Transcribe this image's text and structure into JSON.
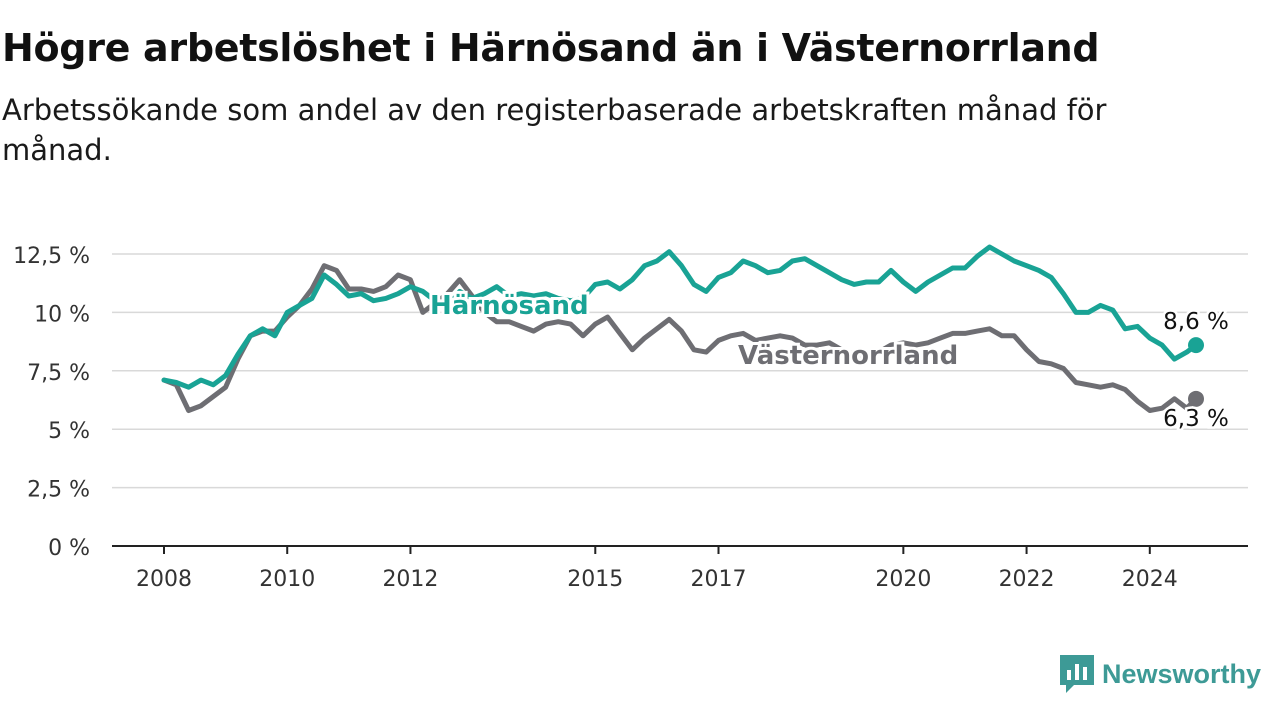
{
  "title": "Högre arbetslöshet i Härnösand än i Västernorrland",
  "subtitle": "Arbetssökande som andel av den registerbaserade arbetskraften månad för månad.",
  "brand": {
    "name": "Newsworthy",
    "icon": "bar-chart-logo-icon",
    "color": "#3d9a96"
  },
  "chart_data": {
    "type": "line",
    "title": "Högre arbetslöshet i Härnösand än i Västernorrland",
    "y_ticks": [
      0,
      2.5,
      5,
      7.5,
      10,
      12.5
    ],
    "y_tick_labels": [
      "0 %",
      "2,5 %",
      "5 %",
      "7,5 %",
      "10 %",
      "12,5 %"
    ],
    "ylim": [
      0,
      12.5
    ],
    "xlim": [
      2008,
      2024.75
    ],
    "x_ticks": [
      2008,
      2010,
      2012,
      2015,
      2017,
      2020,
      2022,
      2024
    ],
    "x_tick_labels": [
      "2008",
      "2010",
      "2012",
      "2015",
      "2017",
      "2020",
      "2022",
      "2024"
    ],
    "grid": true,
    "legend": "inline labels",
    "series": [
      {
        "name": "Härnösand",
        "color": "#19a395",
        "end_label": "8,6 %",
        "points": [
          [
            2008.0,
            7.1
          ],
          [
            2008.2,
            7.0
          ],
          [
            2008.4,
            6.8
          ],
          [
            2008.6,
            7.1
          ],
          [
            2008.8,
            6.9
          ],
          [
            2009.0,
            7.3
          ],
          [
            2009.2,
            8.2
          ],
          [
            2009.4,
            9.0
          ],
          [
            2009.6,
            9.3
          ],
          [
            2009.8,
            9.0
          ],
          [
            2010.0,
            10.0
          ],
          [
            2010.2,
            10.3
          ],
          [
            2010.4,
            10.6
          ],
          [
            2010.6,
            11.6
          ],
          [
            2010.8,
            11.2
          ],
          [
            2011.0,
            10.7
          ],
          [
            2011.2,
            10.8
          ],
          [
            2011.4,
            10.5
          ],
          [
            2011.6,
            10.6
          ],
          [
            2011.8,
            10.8
          ],
          [
            2012.0,
            11.1
          ],
          [
            2012.2,
            10.9
          ],
          [
            2012.4,
            10.5
          ],
          [
            2012.6,
            10.2
          ],
          [
            2012.8,
            10.9
          ],
          [
            2013.0,
            10.6
          ],
          [
            2013.2,
            10.8
          ],
          [
            2013.4,
            11.1
          ],
          [
            2013.6,
            10.7
          ],
          [
            2013.8,
            10.8
          ],
          [
            2014.0,
            10.7
          ],
          [
            2014.2,
            10.8
          ],
          [
            2014.4,
            10.6
          ],
          [
            2014.6,
            10.5
          ],
          [
            2014.8,
            10.6
          ],
          [
            2015.0,
            11.2
          ],
          [
            2015.2,
            11.3
          ],
          [
            2015.4,
            11.0
          ],
          [
            2015.6,
            11.4
          ],
          [
            2015.8,
            12.0
          ],
          [
            2016.0,
            12.2
          ],
          [
            2016.2,
            12.6
          ],
          [
            2016.4,
            12.0
          ],
          [
            2016.6,
            11.2
          ],
          [
            2016.8,
            10.9
          ],
          [
            2017.0,
            11.5
          ],
          [
            2017.2,
            11.7
          ],
          [
            2017.4,
            12.2
          ],
          [
            2017.6,
            12.0
          ],
          [
            2017.8,
            11.7
          ],
          [
            2018.0,
            11.8
          ],
          [
            2018.2,
            12.2
          ],
          [
            2018.4,
            12.3
          ],
          [
            2018.6,
            12.0
          ],
          [
            2018.8,
            11.7
          ],
          [
            2019.0,
            11.4
          ],
          [
            2019.2,
            11.2
          ],
          [
            2019.4,
            11.3
          ],
          [
            2019.6,
            11.3
          ],
          [
            2019.8,
            11.8
          ],
          [
            2020.0,
            11.3
          ],
          [
            2020.2,
            10.9
          ],
          [
            2020.4,
            11.3
          ],
          [
            2020.6,
            11.6
          ],
          [
            2020.8,
            11.9
          ],
          [
            2021.0,
            11.9
          ],
          [
            2021.2,
            12.4
          ],
          [
            2021.4,
            12.8
          ],
          [
            2021.6,
            12.5
          ],
          [
            2021.8,
            12.2
          ],
          [
            2022.0,
            12.0
          ],
          [
            2022.2,
            11.8
          ],
          [
            2022.4,
            11.5
          ],
          [
            2022.6,
            10.8
          ],
          [
            2022.8,
            10.0
          ],
          [
            2023.0,
            10.0
          ],
          [
            2023.2,
            10.3
          ],
          [
            2023.4,
            10.1
          ],
          [
            2023.6,
            9.3
          ],
          [
            2023.8,
            9.4
          ],
          [
            2024.0,
            8.9
          ],
          [
            2024.2,
            8.6
          ],
          [
            2024.4,
            8.0
          ],
          [
            2024.6,
            8.3
          ],
          [
            2024.75,
            8.6
          ]
        ]
      },
      {
        "name": "Västernorrland",
        "color": "#6e6e73",
        "end_label": "6,3 %",
        "points": [
          [
            2008.0,
            7.1
          ],
          [
            2008.2,
            6.9
          ],
          [
            2008.4,
            5.8
          ],
          [
            2008.6,
            6.0
          ],
          [
            2008.8,
            6.4
          ],
          [
            2009.0,
            6.8
          ],
          [
            2009.2,
            8.0
          ],
          [
            2009.4,
            9.0
          ],
          [
            2009.6,
            9.2
          ],
          [
            2009.8,
            9.2
          ],
          [
            2010.0,
            9.8
          ],
          [
            2010.2,
            10.3
          ],
          [
            2010.4,
            11.0
          ],
          [
            2010.6,
            12.0
          ],
          [
            2010.8,
            11.8
          ],
          [
            2011.0,
            11.0
          ],
          [
            2011.2,
            11.0
          ],
          [
            2011.4,
            10.9
          ],
          [
            2011.6,
            11.1
          ],
          [
            2011.8,
            11.6
          ],
          [
            2012.0,
            11.4
          ],
          [
            2012.2,
            10.0
          ],
          [
            2012.4,
            10.4
          ],
          [
            2012.6,
            10.8
          ],
          [
            2012.8,
            11.4
          ],
          [
            2013.0,
            10.7
          ],
          [
            2013.2,
            10.0
          ],
          [
            2013.4,
            9.6
          ],
          [
            2013.6,
            9.6
          ],
          [
            2013.8,
            9.4
          ],
          [
            2014.0,
            9.2
          ],
          [
            2014.2,
            9.5
          ],
          [
            2014.4,
            9.6
          ],
          [
            2014.6,
            9.5
          ],
          [
            2014.8,
            9.0
          ],
          [
            2015.0,
            9.5
          ],
          [
            2015.2,
            9.8
          ],
          [
            2015.4,
            9.1
          ],
          [
            2015.6,
            8.4
          ],
          [
            2015.8,
            8.9
          ],
          [
            2016.0,
            9.3
          ],
          [
            2016.2,
            9.7
          ],
          [
            2016.4,
            9.2
          ],
          [
            2016.6,
            8.4
          ],
          [
            2016.8,
            8.3
          ],
          [
            2017.0,
            8.8
          ],
          [
            2017.2,
            9.0
          ],
          [
            2017.4,
            9.1
          ],
          [
            2017.6,
            8.8
          ],
          [
            2017.8,
            8.9
          ],
          [
            2018.0,
            9.0
          ],
          [
            2018.2,
            8.9
          ],
          [
            2018.4,
            8.6
          ],
          [
            2018.6,
            8.6
          ],
          [
            2018.8,
            8.7
          ],
          [
            2019.0,
            8.4
          ],
          [
            2019.2,
            8.2
          ],
          [
            2019.4,
            8.1
          ],
          [
            2019.6,
            8.3
          ],
          [
            2019.8,
            8.6
          ],
          [
            2020.0,
            8.7
          ],
          [
            2020.2,
            8.6
          ],
          [
            2020.4,
            8.7
          ],
          [
            2020.6,
            8.9
          ],
          [
            2020.8,
            9.1
          ],
          [
            2021.0,
            9.1
          ],
          [
            2021.2,
            9.2
          ],
          [
            2021.4,
            9.3
          ],
          [
            2021.6,
            9.0
          ],
          [
            2021.8,
            9.0
          ],
          [
            2022.0,
            8.4
          ],
          [
            2022.2,
            7.9
          ],
          [
            2022.4,
            7.8
          ],
          [
            2022.6,
            7.6
          ],
          [
            2022.8,
            7.0
          ],
          [
            2023.0,
            6.9
          ],
          [
            2023.2,
            6.8
          ],
          [
            2023.4,
            6.9
          ],
          [
            2023.6,
            6.7
          ],
          [
            2023.8,
            6.2
          ],
          [
            2024.0,
            5.8
          ],
          [
            2024.2,
            5.9
          ],
          [
            2024.4,
            6.3
          ],
          [
            2024.6,
            5.9
          ],
          [
            2024.75,
            6.3
          ]
        ]
      }
    ]
  }
}
